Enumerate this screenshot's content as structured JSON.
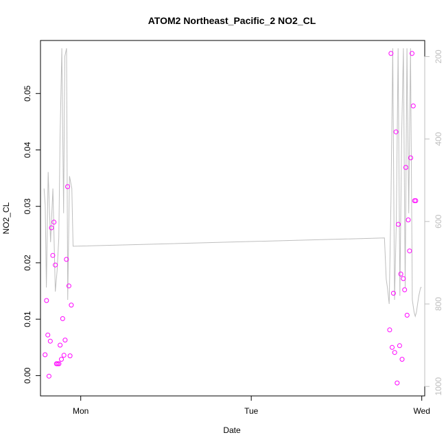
{
  "chart_data": {
    "type": "scatter",
    "title": "ATOM2 Northeast_Pacific_2 NO2_CL",
    "xlabel": "Date",
    "ylabel": "NO2_CL",
    "x_tick_labels": [
      "Mon",
      "Tue",
      "Wed"
    ],
    "x_tick_times": [
      "2016-08-15T00:00",
      "2016-08-16T00:00",
      "2016-08-17T00:00"
    ],
    "xlim": [
      "2016-08-14T18:20",
      "2016-08-17T00:25"
    ],
    "ylim": [
      -0.0036,
      0.0594
    ],
    "y_ticks": [
      0.0,
      0.01,
      0.02,
      0.03,
      0.04,
      0.05
    ],
    "y_tick_labels": [
      "0.00",
      "0.01",
      "0.02",
      "0.03",
      "0.04",
      "0.05"
    ],
    "y2_ticks": [
      200,
      400,
      600,
      800,
      1000
    ],
    "y2_lim": [
      1023,
      161
    ],
    "y2_reversed": true,
    "grid": false,
    "colors": {
      "points": "#ff00ff",
      "line": "#bebebe",
      "frame": "#000000"
    },
    "series": [
      {
        "marker": "open-circle",
        "x": [
          "2016-08-14T18:59",
          "2016-08-14T19:11",
          "2016-08-14T19:22",
          "2016-08-14T19:32",
          "2016-08-14T19:43",
          "2016-08-14T19:53",
          "2016-08-14T20:04",
          "2016-08-14T20:14",
          "2016-08-14T20:25",
          "2016-08-14T20:35",
          "2016-08-14T20:45",
          "2016-08-14T20:56",
          "2016-08-14T21:06",
          "2016-08-14T21:17",
          "2016-08-14T21:27",
          "2016-08-14T21:38",
          "2016-08-14T21:48",
          "2016-08-14T21:59",
          "2016-08-14T22:09",
          "2016-08-14T22:20",
          "2016-08-14T22:30",
          "2016-08-14T22:40",
          "2016-08-16T19:29",
          "2016-08-16T19:40",
          "2016-08-16T19:50",
          "2016-08-16T20:01",
          "2016-08-16T20:11",
          "2016-08-16T20:22",
          "2016-08-16T20:32",
          "2016-08-16T20:42",
          "2016-08-16T20:53",
          "2016-08-16T21:03",
          "2016-08-16T21:14",
          "2016-08-16T21:24",
          "2016-08-16T21:35",
          "2016-08-16T21:45",
          "2016-08-16T21:56",
          "2016-08-16T22:06",
          "2016-08-16T22:17",
          "2016-08-16T22:27",
          "2016-08-16T22:38",
          "2016-08-16T22:48",
          "2016-08-16T22:59",
          "2016-08-16T23:09"
        ],
        "y": [
          0.0037,
          0.0133,
          0.0072,
          -0.0001,
          0.0061,
          0.0262,
          0.0213,
          0.0272,
          0.0196,
          0.0021,
          0.0021,
          0.0021,
          0.0054,
          0.0029,
          0.0101,
          0.0036,
          0.0063,
          0.0206,
          0.0335,
          0.0159,
          0.0035,
          0.0125,
          0.0081,
          0.0571,
          0.005,
          0.0146,
          0.0041,
          0.0432,
          -0.0013,
          0.0268,
          0.0053,
          0.018,
          0.0029,
          0.0172,
          0.0152,
          0.0369,
          0.0107,
          0.0276,
          0.0221,
          0.0386,
          0.0571,
          0.0478,
          0.031,
          0.031
        ]
      }
    ],
    "line_series": {
      "axis": "right",
      "x": [
        "2016-08-14T18:50",
        "2016-08-14T19:00",
        "2016-08-14T19:10",
        "2016-08-14T19:25",
        "2016-08-14T19:45",
        "2016-08-14T20:05",
        "2016-08-14T20:25",
        "2016-08-14T20:40",
        "2016-08-14T20:55",
        "2016-08-14T21:05",
        "2016-08-14T21:20",
        "2016-08-14T21:35",
        "2016-08-14T21:45",
        "2016-08-14T22:00",
        "2016-08-14T22:10",
        "2016-08-14T22:25",
        "2016-08-14T22:45",
        "2016-08-14T22:55",
        "2016-08-16T18:45",
        "2016-08-16T19:00",
        "2016-08-16T19:10",
        "2016-08-16T19:25",
        "2016-08-16T19:40",
        "2016-08-16T19:55",
        "2016-08-16T20:10",
        "2016-08-16T20:25",
        "2016-08-16T20:40",
        "2016-08-16T20:55",
        "2016-08-16T21:10",
        "2016-08-16T21:25",
        "2016-08-16T21:40",
        "2016-08-16T21:55",
        "2016-08-16T22:10",
        "2016-08-16T22:25",
        "2016-08-16T22:40",
        "2016-08-16T22:55",
        "2016-08-16T23:05",
        "2016-08-16T23:15",
        "2016-08-16T23:25",
        "2016-08-16T23:35",
        "2016-08-16T23:50",
        "2016-08-16T23:59"
      ],
      "y": [
        520,
        560,
        760,
        480,
        650,
        520,
        770,
        720,
        640,
        400,
        180,
        580,
        200,
        180,
        790,
        490,
        520,
        660,
        640,
        740,
        760,
        800,
        550,
        180,
        790,
        600,
        180,
        780,
        400,
        180,
        760,
        180,
        580,
        180,
        790,
        820,
        830,
        820,
        800,
        780,
        760,
        760
      ]
    }
  }
}
